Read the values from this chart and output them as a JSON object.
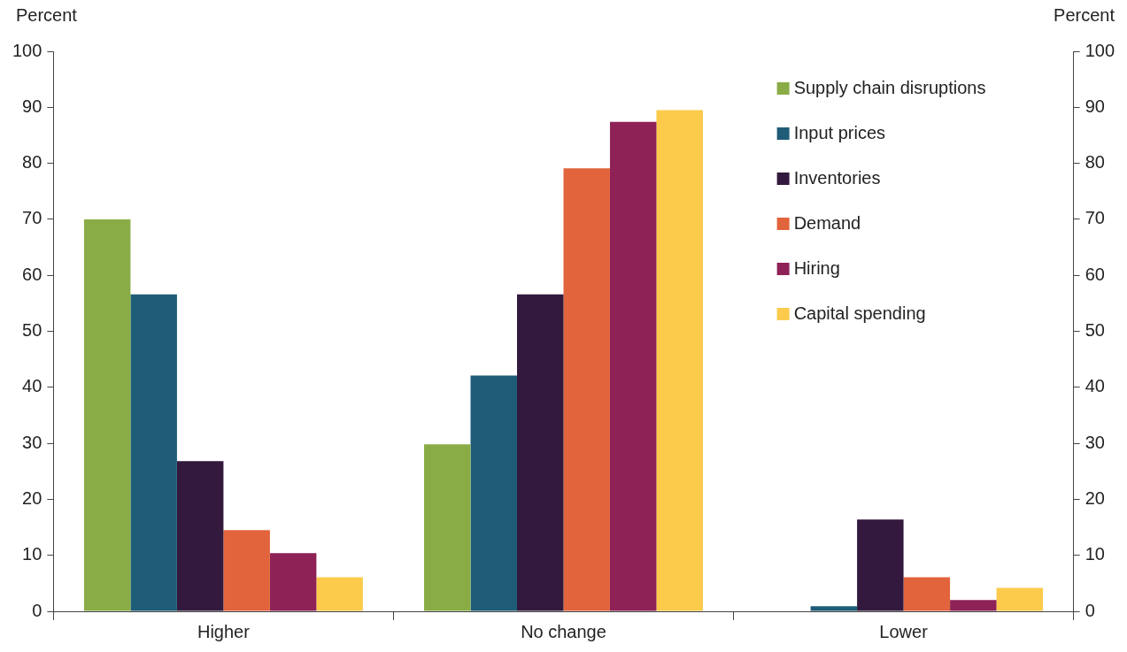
{
  "chart_data": {
    "type": "bar",
    "ylabel": "Percent",
    "y2label": "Percent",
    "categories": [
      "Higher",
      "No change",
      "Lower"
    ],
    "series": [
      {
        "name": "Supply chain disruptions",
        "color": "#8aac46",
        "values": [
          70,
          29.8,
          null
        ]
      },
      {
        "name": "Input prices",
        "color": "#1f5c77",
        "values": [
          56.6,
          42.1,
          0.9
        ]
      },
      {
        "name": "Inventories",
        "color": "#33193d",
        "values": [
          26.8,
          56.6,
          16.4
        ]
      },
      {
        "name": "Demand",
        "color": "#e1643c",
        "values": [
          14.5,
          79.1,
          6.1
        ]
      },
      {
        "name": "Hiring",
        "color": "#8e2257",
        "values": [
          10.4,
          87.4,
          2
        ]
      },
      {
        "name": "Capital spending",
        "color": "#fccb4b",
        "values": [
          6.1,
          89.5,
          4.2
        ]
      }
    ],
    "ylim": [
      0,
      100
    ],
    "yticks": [
      0,
      10,
      20,
      30,
      40,
      50,
      60,
      70,
      80,
      90,
      100
    ],
    "y2lim": [
      0,
      100
    ],
    "y2ticks": [
      0,
      10,
      20,
      30,
      40,
      50,
      60,
      70,
      80,
      90,
      100
    ],
    "grid": false,
    "legend": "top right"
  }
}
